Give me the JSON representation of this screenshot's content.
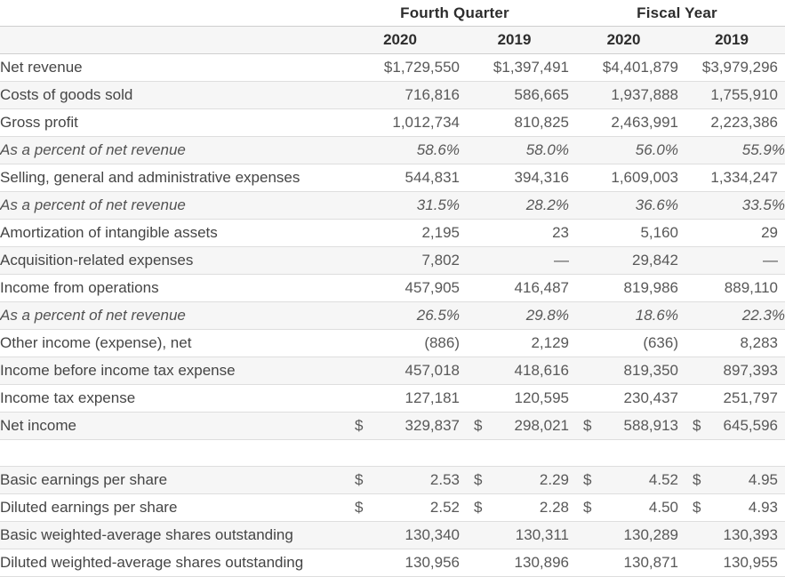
{
  "table": {
    "currency_symbol": "$",
    "col_groups": [
      "Fourth Quarter",
      "Fiscal Year"
    ],
    "year_headers": [
      "2020",
      "2019",
      "2020",
      "2019"
    ],
    "rows": [
      {
        "label": "Net revenue",
        "cells": [
          "$1,729,550",
          "$1,397,491",
          "$4,401,879",
          "$3,979,296"
        ],
        "shade": false
      },
      {
        "label": "Costs of goods sold",
        "cells": [
          "716,816",
          "586,665",
          "1,937,888",
          "1,755,910"
        ],
        "shade": true
      },
      {
        "label": "Gross profit",
        "cells": [
          "1,012,734",
          "810,825",
          "2,463,991",
          "2,223,386"
        ],
        "shade": false
      },
      {
        "label": "As a percent of net revenue",
        "cells": [
          "58.6%",
          "58.0%",
          "56.0%",
          "55.9%"
        ],
        "shade": true,
        "italic": true,
        "pct": true
      },
      {
        "label": "Selling, general and administrative expenses",
        "cells": [
          "544,831",
          "394,316",
          "1,609,003",
          "1,334,247"
        ],
        "shade": false
      },
      {
        "label": "As a percent of net revenue",
        "cells": [
          "31.5%",
          "28.2%",
          "36.6%",
          "33.5%"
        ],
        "shade": true,
        "italic": true,
        "pct": true
      },
      {
        "label": "Amortization of intangible assets",
        "cells": [
          "2,195",
          "23",
          "5,160",
          "29"
        ],
        "shade": false
      },
      {
        "label": "Acquisition-related expenses",
        "cells": [
          "7,802",
          "—",
          "29,842",
          "—"
        ],
        "shade": true
      },
      {
        "label": "Income from operations",
        "cells": [
          "457,905",
          "416,487",
          "819,986",
          "889,110"
        ],
        "shade": false
      },
      {
        "label": "As a percent of net revenue",
        "cells": [
          "26.5%",
          "29.8%",
          "18.6%",
          "22.3%"
        ],
        "shade": true,
        "italic": true,
        "pct": true
      },
      {
        "label": "Other income (expense), net",
        "cells": [
          "(886)",
          "2,129",
          "(636)",
          "8,283"
        ],
        "shade": false
      },
      {
        "label": "Income before income tax expense",
        "cells": [
          "457,018",
          "418,616",
          "819,350",
          "897,393"
        ],
        "shade": true
      },
      {
        "label": "Income tax expense",
        "cells": [
          "127,181",
          "120,595",
          "230,437",
          "251,797"
        ],
        "shade": false
      },
      {
        "label": "Net income",
        "cells": [
          "329,837",
          "298,021",
          "588,913",
          "645,596"
        ],
        "shade": true,
        "dollar": true
      },
      {
        "spacer": true
      },
      {
        "label": "Basic earnings per share",
        "cells": [
          "2.53",
          "2.29",
          "4.52",
          "4.95"
        ],
        "shade": true,
        "dollar": true
      },
      {
        "label": "Diluted earnings per share",
        "cells": [
          "2.52",
          "2.28",
          "4.50",
          "4.93"
        ],
        "shade": false,
        "dollar": true
      },
      {
        "label": "Basic weighted-average shares outstanding",
        "cells": [
          "130,340",
          "130,311",
          "130,289",
          "130,393"
        ],
        "shade": true
      },
      {
        "label": "Diluted weighted-average shares outstanding",
        "cells": [
          "130,956",
          "130,896",
          "130,871",
          "130,955"
        ],
        "shade": false
      }
    ]
  },
  "colors": {
    "stripe_background": "#f6f6f6",
    "row_border": "#dedede",
    "header_border": "#cfcfcf",
    "label_text": "#454545",
    "number_text": "#585858",
    "header_text": "#2d2d2d"
  }
}
